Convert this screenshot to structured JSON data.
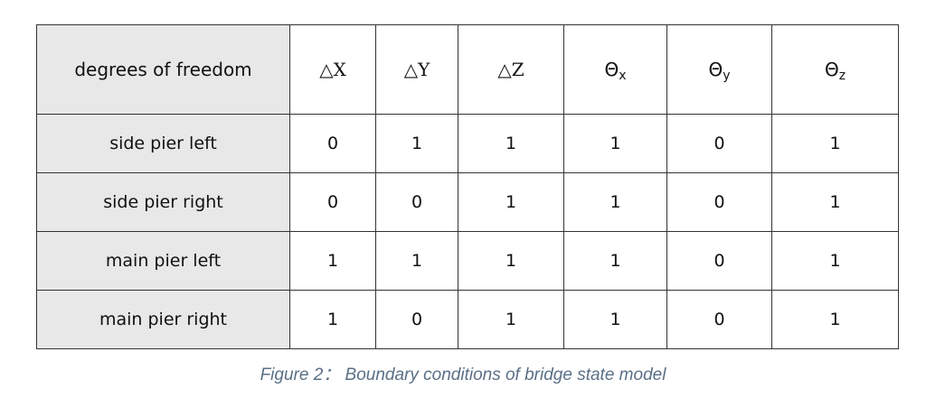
{
  "table": {
    "row_header_label": "degrees of freedom",
    "columns": [
      {
        "symbol": "△X",
        "type": "delta"
      },
      {
        "symbol": "△Y",
        "type": "delta"
      },
      {
        "symbol": "△Z",
        "type": "delta"
      },
      {
        "symbol": "Θ",
        "subscript": "x",
        "type": "theta"
      },
      {
        "symbol": "Θ",
        "subscript": "y",
        "type": "theta"
      },
      {
        "symbol": "Θ",
        "subscript": "z",
        "type": "theta"
      }
    ],
    "rows": [
      {
        "label": "side pier left",
        "values": [
          "0",
          "1",
          "1",
          "1",
          "0",
          "1"
        ]
      },
      {
        "label": "side pier right",
        "values": [
          "0",
          "0",
          "1",
          "1",
          "0",
          "1"
        ]
      },
      {
        "label": "main pier left",
        "values": [
          "1",
          "1",
          "1",
          "1",
          "0",
          "1"
        ]
      },
      {
        "label": "main pier right",
        "values": [
          "1",
          "0",
          "1",
          "1",
          "0",
          "1"
        ]
      }
    ]
  },
  "caption": "Figure 2： Boundary conditions of bridge state model"
}
